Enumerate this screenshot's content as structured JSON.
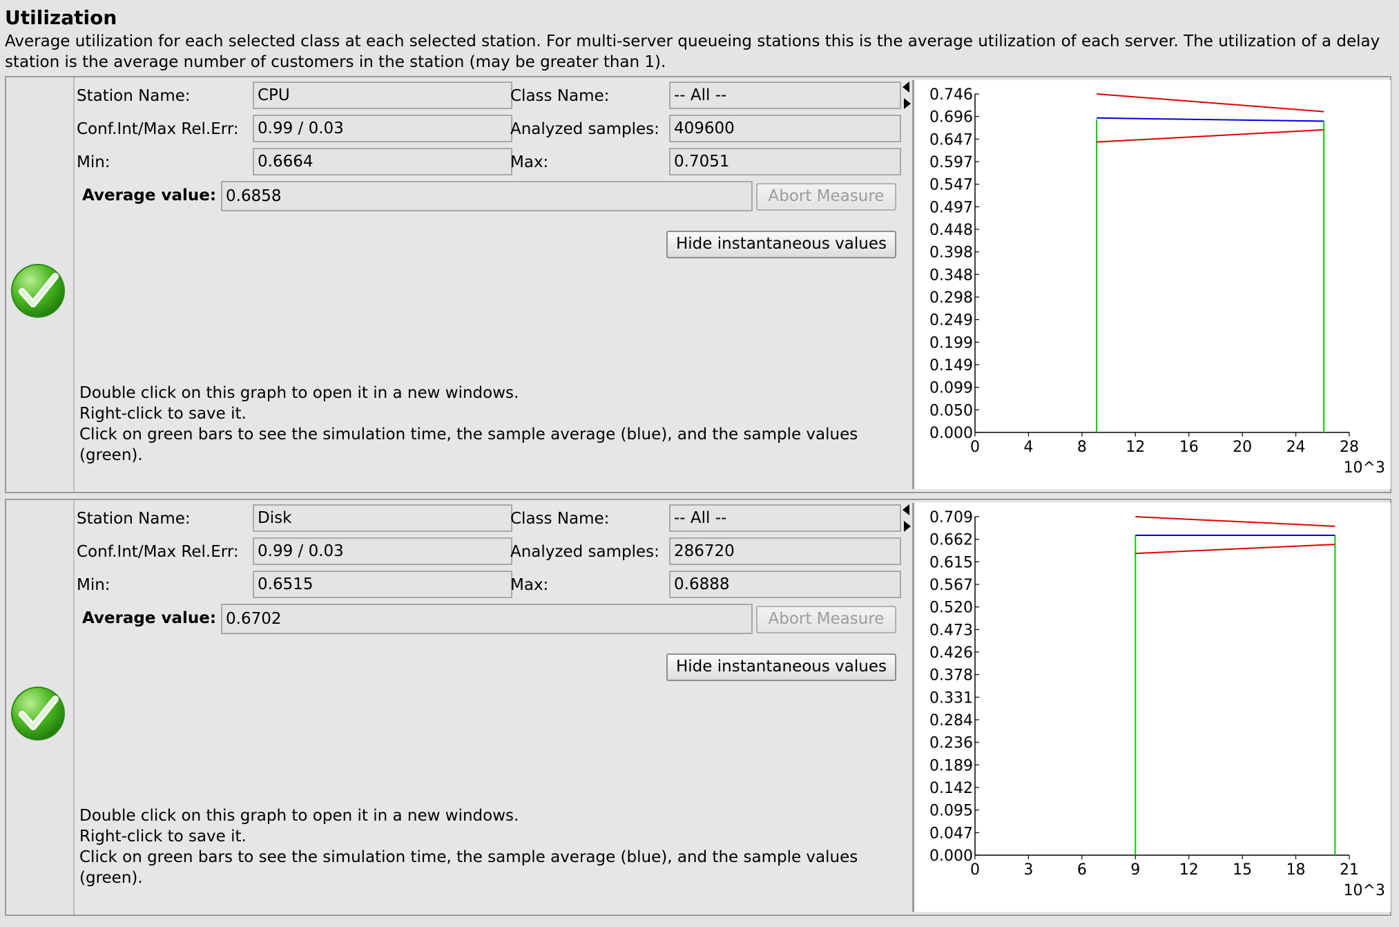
{
  "header": {
    "title": "Utilization",
    "description": "Average utilization for each selected class at each selected station. For multi-server queueing stations this is the average utilization of each server. The utilization of a delay station is the average number of customers in the station (may be greater than 1)."
  },
  "labels": {
    "station_name": "Station Name:",
    "class_name": "Class Name:",
    "conf_int": "Conf.Int/Max Rel.Err:",
    "analyzed_samples": "Analyzed samples:",
    "min": "Min:",
    "max": "Max:",
    "average_value": "Average value:",
    "abort_measure": "Abort Measure",
    "hide_instantaneous": "Hide instantaneous values",
    "help_line1": "Double click on this graph to open it in a new windows.",
    "help_line2": "Right-click to save it.",
    "help_line3": "Click on green bars to see the simulation time, the sample average (blue), and the sample values (green)."
  },
  "colors": {
    "upper_bound": "#e00000",
    "average": "#0000e0",
    "samples": "#00d000",
    "status": "#3aa11e"
  },
  "measures": [
    {
      "station_name": "CPU",
      "class_name": "-- All --",
      "conf_int": "0.99 / 0.03",
      "analyzed_samples": "409600",
      "min": "0.6664",
      "max": "0.7051",
      "average_value": "0.6858",
      "status_icon": "check-icon",
      "chart_data": {
        "type": "line",
        "y_ticks": [
          "0.746",
          "0.696",
          "0.647",
          "0.597",
          "0.547",
          "0.497",
          "0.448",
          "0.398",
          "0.348",
          "0.298",
          "0.249",
          "0.199",
          "0.149",
          "0.099",
          "0.050",
          "0.000"
        ],
        "x_ticks": [
          "0",
          "4",
          "8",
          "12",
          "16",
          "20",
          "24",
          "28"
        ],
        "x_unit": "10^3",
        "ylim": [
          0,
          0.746
        ],
        "xlim": [
          0,
          28
        ],
        "series": [
          {
            "x": [
              9.1,
              26.1
            ],
            "values": [
              0.746,
              0.707
            ]
          },
          {
            "x": [
              9.1,
              26.1
            ],
            "values": [
              0.693,
              0.686
            ]
          },
          {
            "x": [
              9.1,
              26.1
            ],
            "values": [
              0.64,
              0.667
            ]
          }
        ],
        "bars": [
          {
            "x": 9.1,
            "value": 0.69
          },
          {
            "x": 26.1,
            "value": 0.686
          }
        ]
      }
    },
    {
      "station_name": "Disk",
      "class_name": "-- All --",
      "conf_int": "0.99 / 0.03",
      "analyzed_samples": "286720",
      "min": "0.6515",
      "max": "0.6888",
      "average_value": "0.6702",
      "status_icon": "check-icon",
      "chart_data": {
        "type": "line",
        "y_ticks": [
          "0.709",
          "0.662",
          "0.615",
          "0.567",
          "0.520",
          "0.473",
          "0.426",
          "0.378",
          "0.331",
          "0.284",
          "0.236",
          "0.189",
          "0.142",
          "0.095",
          "0.047",
          "0.000"
        ],
        "x_ticks": [
          "0",
          "3",
          "6",
          "9",
          "12",
          "15",
          "18",
          "21"
        ],
        "x_unit": "10^3",
        "ylim": [
          0,
          0.709
        ],
        "xlim": [
          0,
          21
        ],
        "series": [
          {
            "x": [
              9.0,
              20.2
            ],
            "values": [
              0.709,
              0.689
            ]
          },
          {
            "x": [
              9.0,
              20.2
            ],
            "values": [
              0.67,
              0.67
            ]
          },
          {
            "x": [
              9.0,
              20.2
            ],
            "values": [
              0.632,
              0.651
            ]
          }
        ],
        "bars": [
          {
            "x": 9.0,
            "value": 0.67
          },
          {
            "x": 20.2,
            "value": 0.67
          }
        ]
      }
    }
  ]
}
